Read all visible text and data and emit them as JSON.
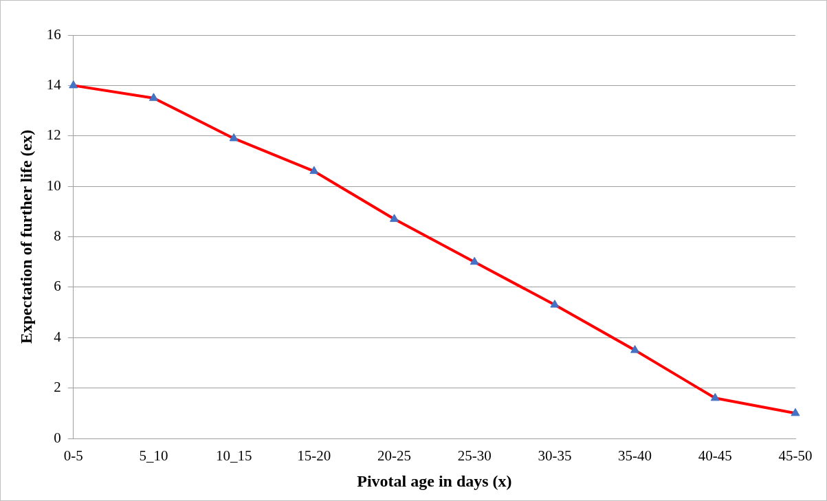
{
  "chart_data": {
    "type": "line",
    "xlabel": "Pivotal age in days (x)",
    "ylabel": "Expectation of further life (ex)",
    "categories": [
      "0-5",
      "5_10",
      "10_15",
      "15-20",
      "20-25",
      "25-30",
      "30-35",
      "35-40",
      "40-45",
      "45-50"
    ],
    "series": [
      {
        "color": "#ff0000",
        "colors": [
          "#4472c4",
          "#4472c4",
          "#4472c4",
          "#4472c4",
          "#4472c4",
          "#4472c4",
          "#4472c4",
          "#4472c4",
          "#4472c4",
          "#4472c4"
        ],
        "values": [
          14.0,
          13.5,
          11.9,
          10.6,
          8.7,
          7.0,
          5.3,
          3.5,
          1.6,
          1.0
        ]
      }
    ],
    "ylim": [
      0,
      16
    ],
    "yticks": [
      0,
      2,
      4,
      6,
      8,
      10,
      12,
      14,
      16
    ],
    "grid": "y",
    "legend": false,
    "marker": "triangle",
    "line_style": "solid"
  }
}
